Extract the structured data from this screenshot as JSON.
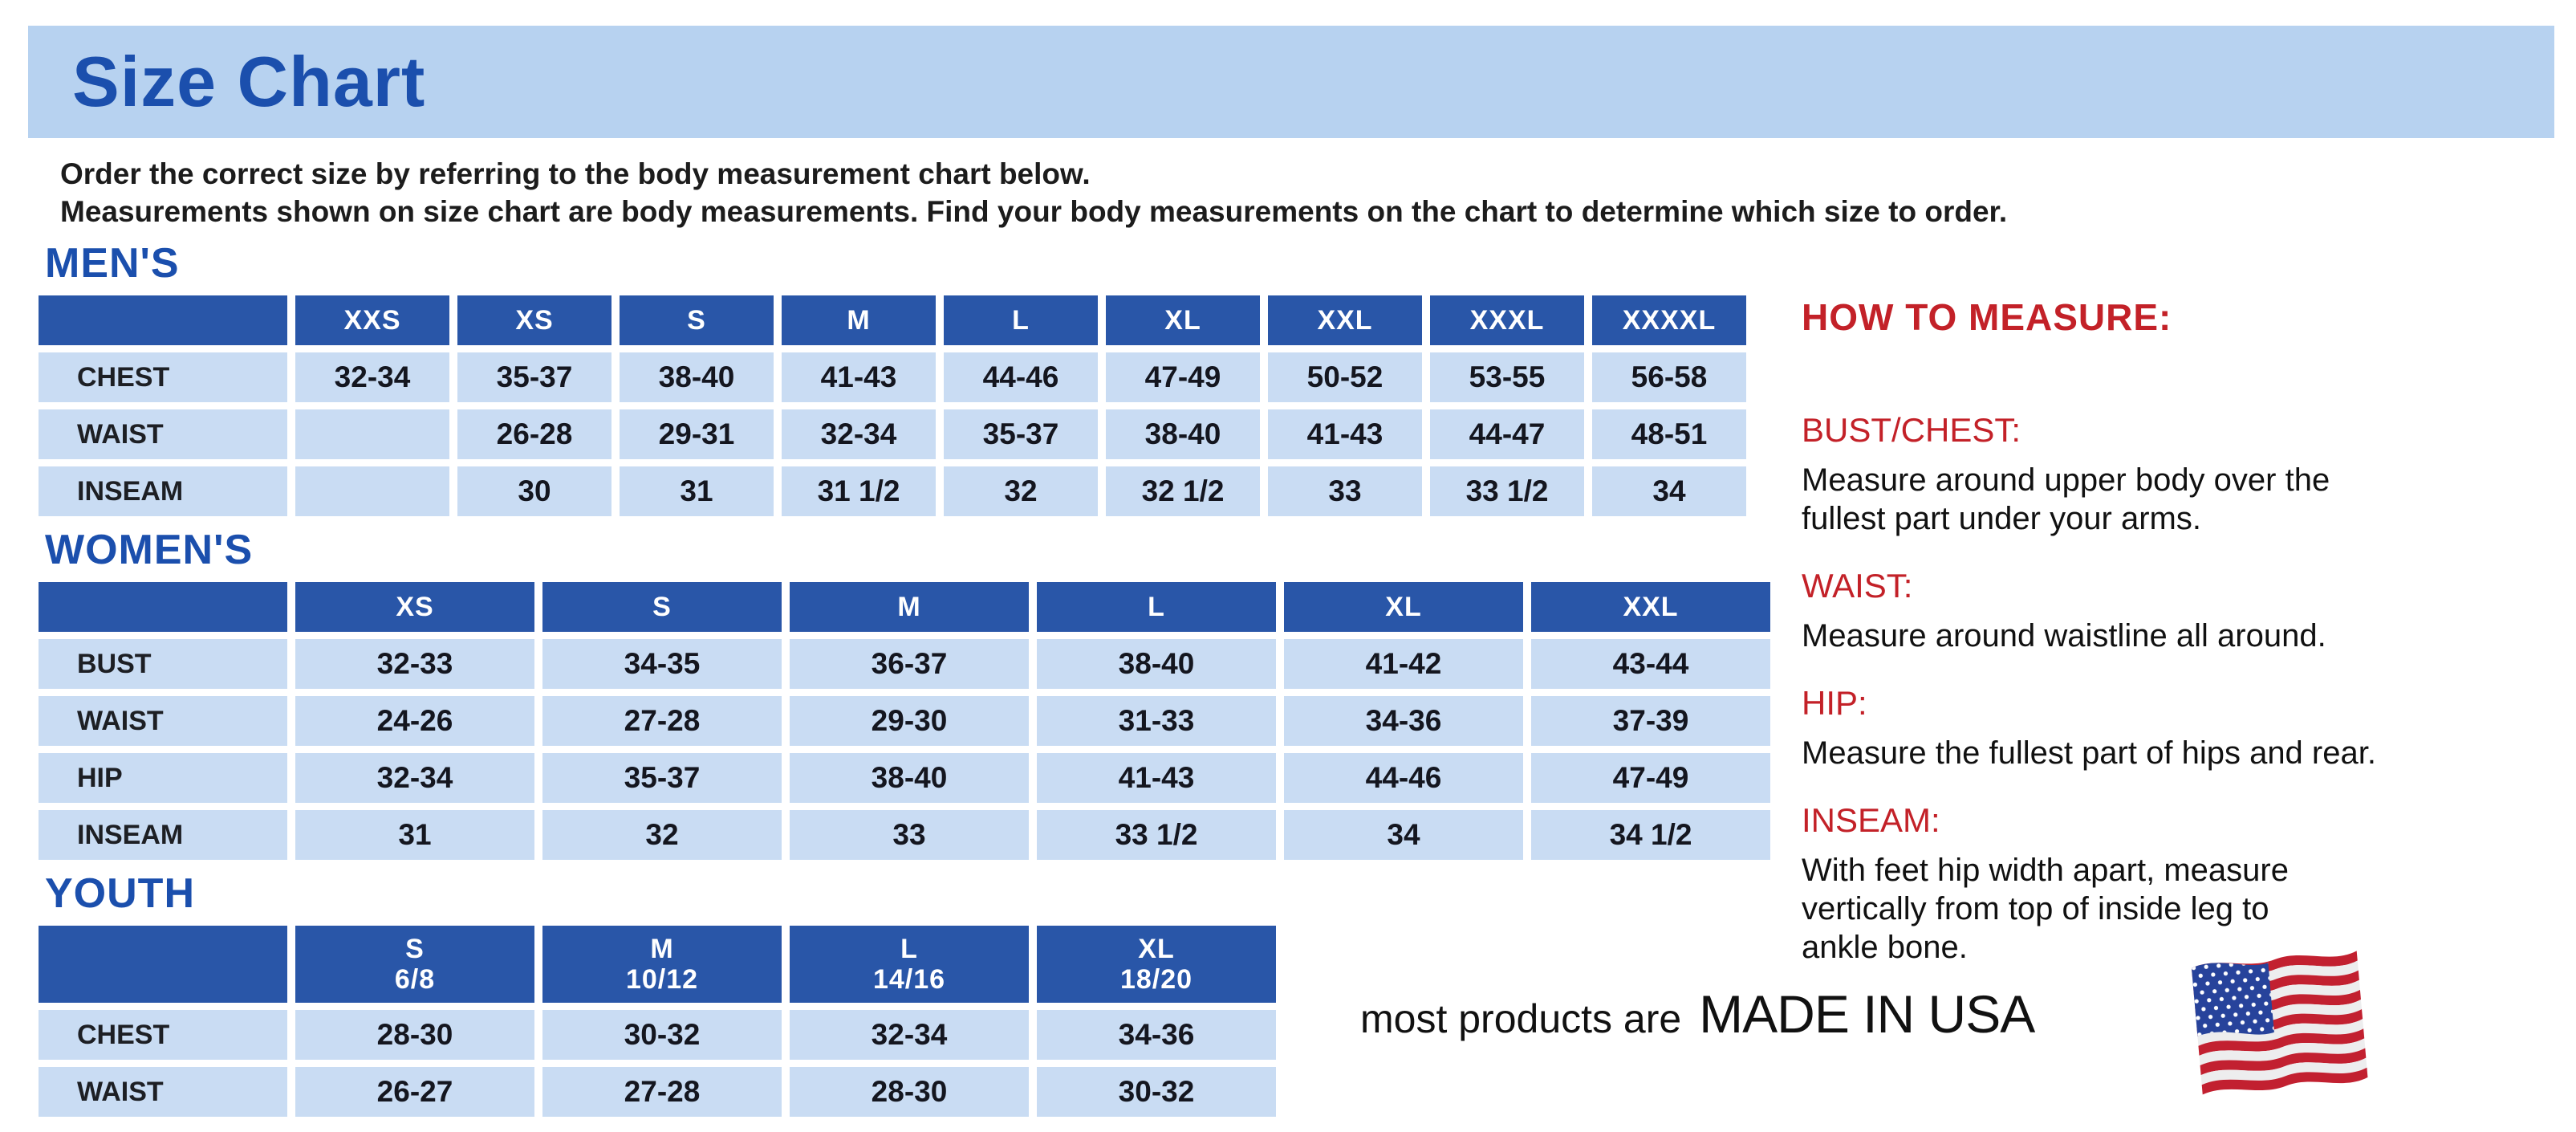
{
  "colors": {
    "banner_bg": "#b7d2f0",
    "title_blue": "#1b4fad",
    "section_blue": "#1b4fad",
    "header_blue": "#2956a8",
    "cell_blue": "#c9dcf3",
    "value_text": "#14161f",
    "heading_red": "#c32128",
    "flag_red": "#c22030",
    "flag_blue": "#27439b"
  },
  "page": {
    "title": "Size Chart"
  },
  "intro": {
    "line1": "Order the correct size by referring to the body measurement chart below.",
    "line2": "Measurements shown on size chart are body measurements.  Find your body measurements on the chart to determine which size to order."
  },
  "tables": [
    {
      "id": "mens",
      "heading": "MEN'S",
      "columns": [
        {
          "label": "XXS"
        },
        {
          "label": "XS"
        },
        {
          "label": "S"
        },
        {
          "label": "M"
        },
        {
          "label": "L"
        },
        {
          "label": "XL"
        },
        {
          "label": "XXL"
        },
        {
          "label": "XXXL"
        },
        {
          "label": "XXXXL"
        }
      ],
      "rows": [
        {
          "label": "CHEST",
          "values": [
            "32-34",
            "35-37",
            "38-40",
            "41-43",
            "44-46",
            "47-49",
            "50-52",
            "53-55",
            "56-58"
          ]
        },
        {
          "label": "WAIST",
          "values": [
            "",
            "26-28",
            "29-31",
            "32-34",
            "35-37",
            "38-40",
            "41-43",
            "44-47",
            "48-51"
          ]
        },
        {
          "label": "INSEAM",
          "values": [
            "",
            "30",
            "31",
            "31 1/2",
            "32",
            "32 1/2",
            "33",
            "33 1/2",
            "34"
          ]
        }
      ]
    },
    {
      "id": "womens",
      "heading": "WOMEN'S",
      "columns": [
        {
          "label": "XS"
        },
        {
          "label": "S"
        },
        {
          "label": "M"
        },
        {
          "label": "L"
        },
        {
          "label": "XL"
        },
        {
          "label": "XXL"
        }
      ],
      "rows": [
        {
          "label": "BUST",
          "values": [
            "32-33",
            "34-35",
            "36-37",
            "38-40",
            "41-42",
            "43-44"
          ]
        },
        {
          "label": "WAIST",
          "values": [
            "24-26",
            "27-28",
            "29-30",
            "31-33",
            "34-36",
            "37-39"
          ]
        },
        {
          "label": "HIP",
          "values": [
            "32-34",
            "35-37",
            "38-40",
            "41-43",
            "44-46",
            "47-49"
          ]
        },
        {
          "label": "INSEAM",
          "values": [
            "31",
            "32",
            "33",
            "33 1/2",
            "34",
            "34 1/2"
          ]
        }
      ]
    },
    {
      "id": "youth",
      "heading": "YOUTH",
      "columns": [
        {
          "label": "S",
          "sublabel": "6/8"
        },
        {
          "label": "M",
          "sublabel": "10/12"
        },
        {
          "label": "L",
          "sublabel": "14/16"
        },
        {
          "label": "XL",
          "sublabel": "18/20"
        }
      ],
      "rows": [
        {
          "label": "CHEST",
          "values": [
            "28-30",
            "30-32",
            "32-34",
            "34-36"
          ]
        },
        {
          "label": "WAIST",
          "values": [
            "26-27",
            "27-28",
            "28-30",
            "30-32"
          ]
        }
      ]
    }
  ],
  "how_to_measure": {
    "heading": "HOW TO MEASURE:",
    "sections": [
      {
        "label": "BUST/CHEST:",
        "text": "Measure around upper body over the\nfullest part under your arms."
      },
      {
        "label": "WAIST:",
        "text": "Measure around waistline all around."
      },
      {
        "label": "HIP:",
        "text": "Measure the fullest part of hips and rear."
      },
      {
        "label": "INSEAM:",
        "text": "With feet hip width apart, measure\nvertically from top of inside leg to\nankle bone."
      }
    ]
  },
  "footer": {
    "prefix": "most products are",
    "emphasis": "MADE IN USA"
  }
}
